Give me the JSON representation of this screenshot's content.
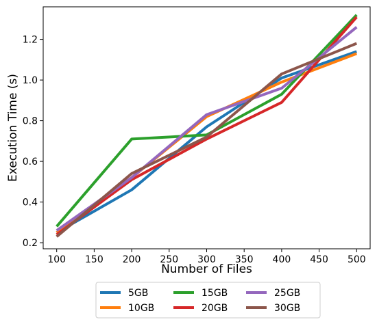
{
  "chart_data": {
    "type": "line",
    "title": "",
    "xlabel": "Number of Files",
    "ylabel": "Execution Time (s)",
    "xlim": [
      82,
      518
    ],
    "ylim": [
      0.17,
      1.36
    ],
    "xticks": [
      100,
      150,
      200,
      250,
      300,
      350,
      400,
      450,
      500
    ],
    "xtick_labels": [
      "100",
      "150",
      "200",
      "250",
      "300",
      "350",
      "400",
      "450",
      "500"
    ],
    "yticks": [
      0.2,
      0.4,
      0.6,
      0.8,
      1.0,
      1.2
    ],
    "ytick_labels": [
      "0.2",
      "0.4",
      "0.6",
      "0.8",
      "1.0",
      "1.2"
    ],
    "grid": false,
    "legend_placement": "bottom-center, below plot, 3 columns",
    "x": [
      100,
      200,
      300,
      400,
      500
    ],
    "series": [
      {
        "name": "5GB",
        "color": "#1f77b4",
        "values": [
          0.25,
          0.46,
          0.77,
          1.01,
          1.14
        ]
      },
      {
        "name": "10GB",
        "color": "#ff7f0e",
        "values": [
          0.25,
          0.52,
          0.82,
          0.99,
          1.13
        ]
      },
      {
        "name": "15GB",
        "color": "#2ca02c",
        "values": [
          0.28,
          0.71,
          0.73,
          0.93,
          1.32
        ]
      },
      {
        "name": "20GB",
        "color": "#d62728",
        "values": [
          0.24,
          0.51,
          0.71,
          0.89,
          1.31
        ]
      },
      {
        "name": "25GB",
        "color": "#9467bd",
        "values": [
          0.26,
          0.52,
          0.83,
          0.96,
          1.26
        ]
      },
      {
        "name": "30GB",
        "color": "#8c564b",
        "values": [
          0.23,
          0.54,
          0.72,
          1.03,
          1.18
        ]
      }
    ]
  }
}
